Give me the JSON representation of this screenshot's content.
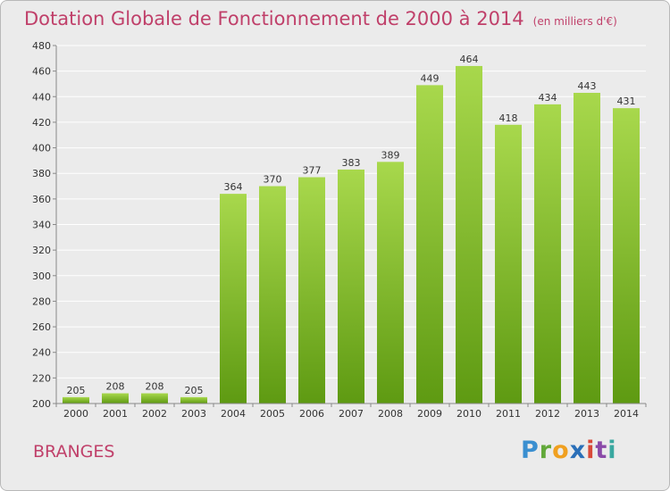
{
  "title": "Dotation Globale de Fonctionnement de 2000 à 2014",
  "unit": "(en milliers d'€)",
  "town": "BRANGES",
  "logo": "Proxiti",
  "colors": {
    "title": "#c0406a",
    "bar_light": "#a8d84c",
    "bar_dark": "#5e9a12",
    "background": "#ebebeb"
  },
  "chart_data": {
    "type": "bar",
    "title": "Dotation Globale de Fonctionnement de 2000 à 2014",
    "subtitle": "(en milliers d'€)",
    "categories": [
      "2000",
      "2001",
      "2002",
      "2003",
      "2004",
      "2005",
      "2006",
      "2007",
      "2008",
      "2009",
      "2010",
      "2011",
      "2012",
      "2013",
      "2014"
    ],
    "values": [
      205,
      208,
      208,
      205,
      364,
      370,
      377,
      383,
      389,
      449,
      464,
      418,
      434,
      443,
      431
    ],
    "xlabel": "",
    "ylabel": "",
    "ylim": [
      200,
      480
    ],
    "yticks": [
      200,
      220,
      240,
      260,
      280,
      300,
      320,
      340,
      360,
      380,
      400,
      420,
      440,
      460,
      480
    ],
    "grid": true,
    "legend": "none"
  }
}
